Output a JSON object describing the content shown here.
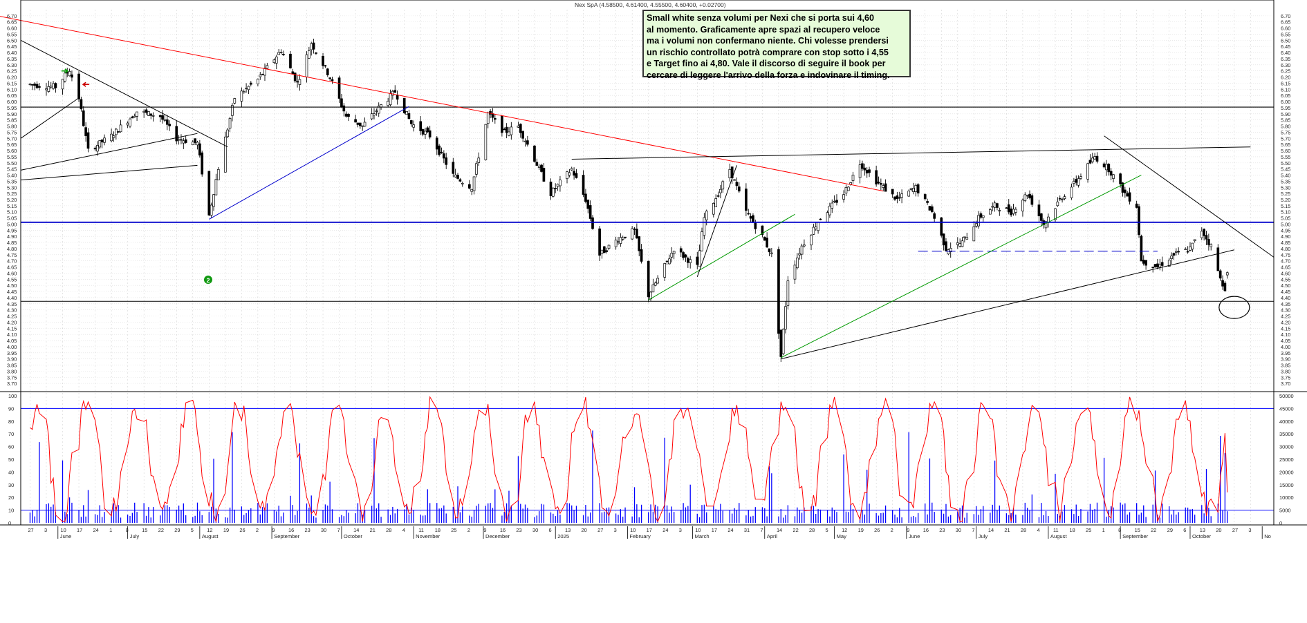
{
  "header": {
    "instrument": "Nex SpA (4.58500, 4.61400, 4.55500, 4.60400, +0.02700)"
  },
  "annotation": {
    "text": "Small white senza volumi per Nexi che si porta sui  4,60\nal momento. Graficamente apre spazi al recupero veloce\nma i volumi non confermano niente. Chi volesse prendersi\nun rischio controllato potrà comprare con stop sotto i 4,55\ne Target fino ai 4,80. Vale il discorso di seguire il book per\ncercare di leggere l'arrivo della forza e indovinare il timing."
  },
  "markers": {
    "circle_number": "2"
  },
  "chart_data": [
    {
      "type": "candlestick",
      "title": "",
      "y_ticks": [
        "6.70",
        "6.65",
        "6.60",
        "6.55",
        "6.50",
        "6.45",
        "6.40",
        "6.35",
        "6.30",
        "6.25",
        "6.20",
        "6.15",
        "6.10",
        "6.05",
        "6.00",
        "5.95",
        "5.90",
        "5.85",
        "5.80",
        "5.75",
        "5.70",
        "5.65",
        "5.60",
        "5.55",
        "5.50",
        "5.45",
        "5.40",
        "5.35",
        "5.30",
        "5.25",
        "5.20",
        "5.15",
        "5.10",
        "5.05",
        "5.00",
        "4.95",
        "4.90",
        "4.85",
        "4.80",
        "4.75",
        "4.70",
        "4.65",
        "4.60",
        "4.55",
        "4.50",
        "4.45",
        "4.40",
        "4.35",
        "4.30",
        "4.25",
        "4.20",
        "4.15",
        "4.10",
        "4.05",
        "4.00",
        "3.95",
        "3.90",
        "3.85",
        "3.80",
        "3.75",
        "3.70"
      ],
      "ylim": [
        3.65,
        6.75
      ],
      "months": [
        "June",
        "July",
        "August",
        "September",
        "October",
        "November",
        "December",
        "2025",
        "February",
        "March",
        "April",
        "May",
        "June",
        "July",
        "August",
        "September",
        "October",
        "No"
      ],
      "day_ticks": [
        "3",
        "27",
        "3",
        "10",
        "17",
        "24",
        "1",
        "8",
        "15",
        "22",
        "29",
        "5",
        "12",
        "19",
        "26",
        "2",
        "9",
        "16",
        "23",
        "30",
        "7",
        "14",
        "21",
        "28",
        "4",
        "11",
        "18",
        "25",
        "2",
        "9",
        "16",
        "23",
        "30",
        "6",
        "13",
        "20",
        "27",
        "3",
        "10",
        "17",
        "24",
        "3",
        "10",
        "17",
        "24",
        "31",
        "7",
        "14",
        "22",
        "28",
        "5",
        "12",
        "19",
        "26",
        "2",
        "9",
        "16",
        "23",
        "30",
        "7",
        "14",
        "21",
        "28",
        "4",
        "11",
        "18",
        "25",
        "1",
        "8",
        "15",
        "22",
        "29",
        "6",
        "13",
        "20",
        "27",
        "3"
      ],
      "closes_anchor": [
        {
          "d": "2024-05-20",
          "c": 6.14
        },
        {
          "d": "2024-05-31",
          "c": 6.12
        },
        {
          "d": "2024-06-06",
          "c": 6.26
        },
        {
          "d": "2024-06-10",
          "c": 6.03
        },
        {
          "d": "2024-06-14",
          "c": 5.6
        },
        {
          "d": "2024-06-24",
          "c": 5.72
        },
        {
          "d": "2024-07-05",
          "c": 5.92
        },
        {
          "d": "2024-07-15",
          "c": 5.88
        },
        {
          "d": "2024-07-22",
          "c": 5.7
        },
        {
          "d": "2024-07-31",
          "c": 5.66
        },
        {
          "d": "2024-08-05",
          "c": 5.07
        },
        {
          "d": "2024-08-09",
          "c": 5.46
        },
        {
          "d": "2024-08-13",
          "c": 5.78
        },
        {
          "d": "2024-08-16",
          "c": 6.03
        },
        {
          "d": "2024-08-26",
          "c": 6.18
        },
        {
          "d": "2024-09-05",
          "c": 6.42
        },
        {
          "d": "2024-09-12",
          "c": 6.15
        },
        {
          "d": "2024-09-18",
          "c": 6.48
        },
        {
          "d": "2024-09-26",
          "c": 6.2
        },
        {
          "d": "2024-10-03",
          "c": 5.88
        },
        {
          "d": "2024-10-10",
          "c": 5.8
        },
        {
          "d": "2024-10-17",
          "c": 5.95
        },
        {
          "d": "2024-10-24",
          "c": 6.08
        },
        {
          "d": "2024-10-31",
          "c": 5.82
        },
        {
          "d": "2024-11-08",
          "c": 5.72
        },
        {
          "d": "2024-11-18",
          "c": 5.4
        },
        {
          "d": "2024-11-26",
          "c": 5.3
        },
        {
          "d": "2024-12-03",
          "c": 5.9
        },
        {
          "d": "2024-12-10",
          "c": 5.75
        },
        {
          "d": "2024-12-16",
          "c": 5.8
        },
        {
          "d": "2024-12-20",
          "c": 5.65
        },
        {
          "d": "2024-12-30",
          "c": 5.25
        },
        {
          "d": "2025-01-08",
          "c": 5.45
        },
        {
          "d": "2025-01-14",
          "c": 5.2
        },
        {
          "d": "2025-01-20",
          "c": 4.75
        },
        {
          "d": "2025-01-28",
          "c": 4.88
        },
        {
          "d": "2025-02-04",
          "c": 4.95
        },
        {
          "d": "2025-02-10",
          "c": 4.42
        },
        {
          "d": "2025-02-14",
          "c": 4.55
        },
        {
          "d": "2025-02-21",
          "c": 4.8
        },
        {
          "d": "2025-03-03",
          "c": 4.65
        },
        {
          "d": "2025-03-06",
          "c": 5.05
        },
        {
          "d": "2025-03-12",
          "c": 5.25
        },
        {
          "d": "2025-03-17",
          "c": 5.45
        },
        {
          "d": "2025-03-24",
          "c": 5.1
        },
        {
          "d": "2025-03-31",
          "c": 4.9
        },
        {
          "d": "2025-04-04",
          "c": 4.75
        },
        {
          "d": "2025-04-08",
          "c": 3.92
        },
        {
          "d": "2025-04-11",
          "c": 4.55
        },
        {
          "d": "2025-04-17",
          "c": 4.82
        },
        {
          "d": "2025-04-25",
          "c": 5.05
        },
        {
          "d": "2025-05-05",
          "c": 5.25
        },
        {
          "d": "2025-05-12",
          "c": 5.5
        },
        {
          "d": "2025-05-19",
          "c": 5.35
        },
        {
          "d": "2025-05-28",
          "c": 5.2
        },
        {
          "d": "2025-06-05",
          "c": 5.3
        },
        {
          "d": "2025-06-12",
          "c": 5.1
        },
        {
          "d": "2025-06-18",
          "c": 4.8
        },
        {
          "d": "2025-06-25",
          "c": 4.85
        },
        {
          "d": "2025-07-02",
          "c": 5.05
        },
        {
          "d": "2025-07-09",
          "c": 5.15
        },
        {
          "d": "2025-07-16",
          "c": 5.1
        },
        {
          "d": "2025-07-23",
          "c": 5.25
        },
        {
          "d": "2025-07-30",
          "c": 5.0
        },
        {
          "d": "2025-08-06",
          "c": 5.2
        },
        {
          "d": "2025-08-13",
          "c": 5.35
        },
        {
          "d": "2025-08-21",
          "c": 5.55
        },
        {
          "d": "2025-08-27",
          "c": 5.45
        },
        {
          "d": "2025-09-03",
          "c": 5.25
        },
        {
          "d": "2025-09-08",
          "c": 5.15
        },
        {
          "d": "2025-09-10",
          "c": 4.7
        },
        {
          "d": "2025-09-17",
          "c": 4.65
        },
        {
          "d": "2025-09-24",
          "c": 4.75
        },
        {
          "d": "2025-10-01",
          "c": 4.8
        },
        {
          "d": "2025-10-06",
          "c": 4.95
        },
        {
          "d": "2025-10-10",
          "c": 4.82
        },
        {
          "d": "2025-10-14",
          "c": 4.55
        },
        {
          "d": "2025-10-16",
          "c": 4.48
        },
        {
          "d": "2025-10-17",
          "c": 4.604
        }
      ],
      "horizontal_levels": [
        {
          "value": 5.955,
          "color": "#000000"
        },
        {
          "value": 5.015,
          "color": "#0000cc"
        },
        {
          "value": 4.37,
          "color": "#000000"
        },
        {
          "value": 4.78,
          "color": "#0000cc",
          "style": "dashed"
        }
      ],
      "trendlines": [
        {
          "from": [
            "2024-04-12",
            6.79
          ],
          "to": [
            "2025-05-22",
            5.27
          ],
          "color": "#ff0000"
        },
        {
          "from": [
            "2024-05-16",
            6.5
          ],
          "to": [
            "2024-08-13",
            5.63
          ],
          "color": "#000000"
        },
        {
          "from": [
            "2024-08-05",
            5.04
          ],
          "to": [
            "2024-10-30",
            5.96
          ],
          "color": "#0000cc"
        },
        {
          "from": [
            "2024-05-16",
            5.44
          ],
          "to": [
            "2024-07-31",
            5.74
          ],
          "color": "#000000"
        },
        {
          "from": [
            "2024-05-16",
            5.36
          ],
          "to": [
            "2024-07-31",
            5.48
          ],
          "color": "#000000"
        },
        {
          "from": [
            "2024-05-16",
            5.7
          ],
          "to": [
            "2024-06-10",
            6.03
          ],
          "color": "#000000"
        },
        {
          "from": [
            "2025-01-08",
            5.53
          ],
          "to": [
            "2025-10-27",
            5.63
          ],
          "color": "#000000"
        },
        {
          "from": [
            "2025-02-10",
            4.38
          ],
          "to": [
            "2025-04-14",
            5.08
          ],
          "color": "#009900"
        },
        {
          "from": [
            "2025-03-03",
            4.57
          ],
          "to": [
            "2025-03-20",
            5.48
          ],
          "color": "#000000"
        },
        {
          "from": [
            "2025-04-08",
            3.9
          ],
          "to": [
            "2025-10-20",
            4.79
          ],
          "color": "#000000"
        },
        {
          "from": [
            "2025-04-08",
            3.91
          ],
          "to": [
            "2025-09-10",
            5.4
          ],
          "color": "#009900"
        },
        {
          "from": [
            "2025-08-25",
            5.72
          ],
          "to": [
            "2025-11-06",
            4.73
          ],
          "color": "#000000"
        }
      ],
      "ellipse_target": {
        "date": "2025-10-20",
        "value": 4.32
      },
      "arrows": [
        {
          "date": "2024-06-04",
          "value": 6.25,
          "direction": "right",
          "color": "#009900"
        },
        {
          "date": "2024-06-13",
          "value": 6.14,
          "direction": "left",
          "color": "#cc0000"
        }
      ],
      "last": {
        "open": 4.585,
        "high": 4.614,
        "low": 4.555,
        "close": 4.604,
        "change": 0.027
      }
    },
    {
      "type": "line+bar",
      "series": [
        {
          "type": "line",
          "color": "#ff0000",
          "ylim": [
            0,
            100
          ],
          "y_ticks": [
            "100",
            "90",
            "80",
            "70",
            "60",
            "50",
            "40",
            "30",
            "20",
            "10",
            "0"
          ],
          "overbought": 90,
          "oversold": 10
        },
        {
          "type": "bar",
          "color": "#0000ff",
          "ylim": [
            0,
            50000
          ],
          "y_ticks": [
            "50000",
            "45000",
            "40000",
            "35000",
            "30000",
            "25000",
            "20000",
            "15000",
            "10000",
            "5000",
            "0"
          ]
        }
      ]
    }
  ]
}
